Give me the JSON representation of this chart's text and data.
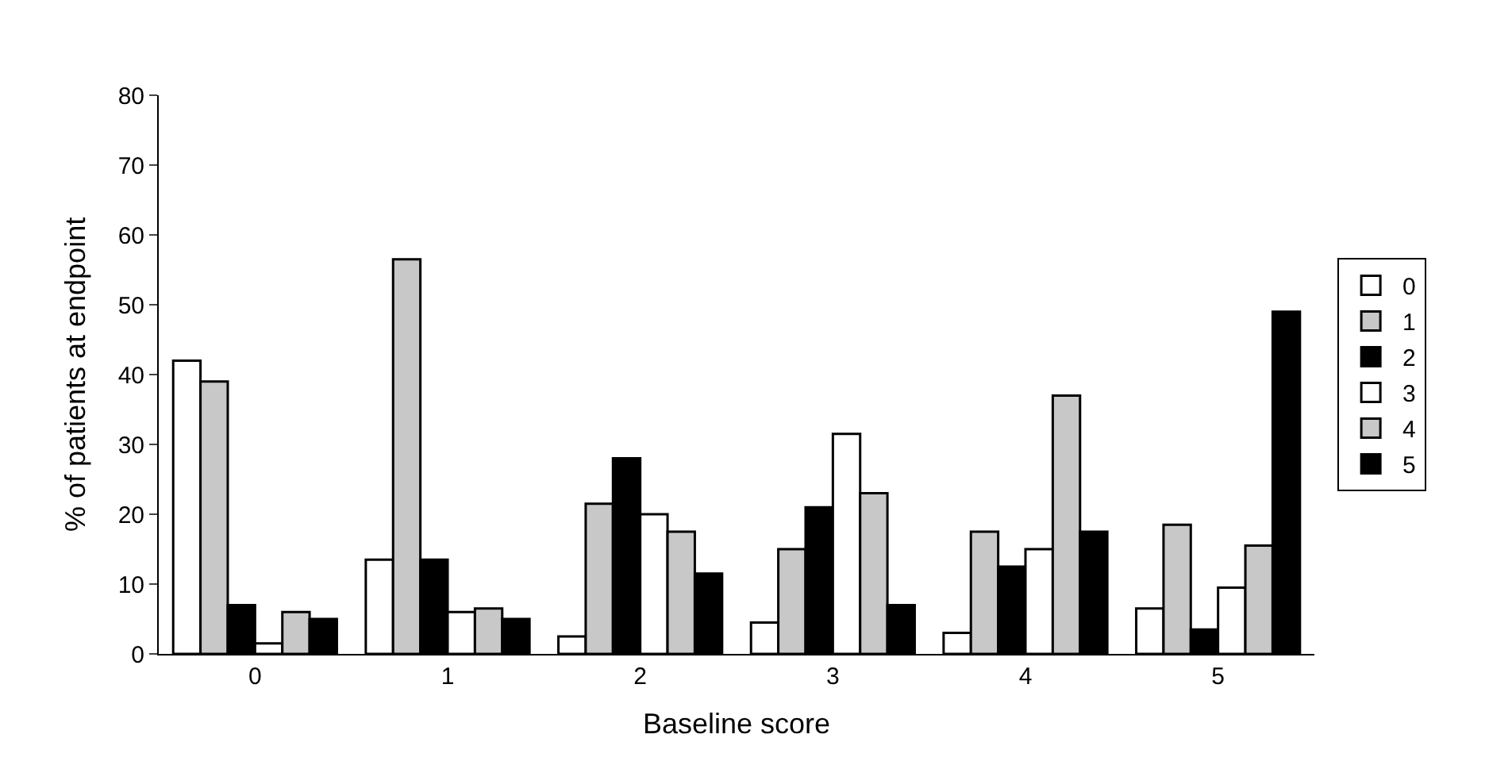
{
  "chart_data": {
    "type": "bar",
    "xlabel": "Baseline score",
    "ylabel": "% of patients at endpoint",
    "categories": [
      "0",
      "1",
      "2",
      "3",
      "4",
      "5"
    ],
    "series": [
      {
        "name": "0",
        "color": "#ffffff",
        "values": [
          42,
          13.5,
          2.5,
          4.5,
          3,
          6.5
        ]
      },
      {
        "name": "1",
        "color": "#c8c8c8",
        "values": [
          39,
          56.5,
          21.5,
          15,
          17.5,
          18.5
        ]
      },
      {
        "name": "2",
        "color": "#000000",
        "values": [
          7,
          13.5,
          28,
          21,
          12.5,
          3.5
        ]
      },
      {
        "name": "3",
        "color": "#ffffff",
        "values": [
          1.5,
          6,
          20,
          31.5,
          15,
          9.5
        ]
      },
      {
        "name": "4",
        "color": "#c8c8c8",
        "values": [
          6,
          6.5,
          17.5,
          23,
          37,
          15.5
        ]
      },
      {
        "name": "5",
        "color": "#000000",
        "values": [
          5,
          5,
          11.5,
          7,
          17.5,
          49
        ]
      }
    ],
    "ylim": [
      0,
      80
    ],
    "yticks": [
      0,
      10,
      20,
      30,
      40,
      50,
      60,
      70,
      80
    ],
    "legend": "right"
  }
}
